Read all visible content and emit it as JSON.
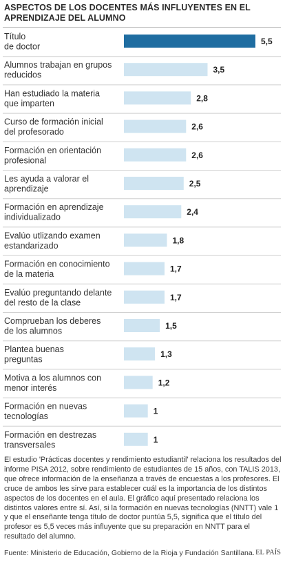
{
  "title": "ASPECTOS DE LOS DOCENTES MÁS INFLUYENTES EN EL APRENDIZAJE DEL ALUMNO",
  "colors": {
    "highlight": "#1f6da1",
    "bar": "#cfe4f1"
  },
  "chart_data": {
    "type": "bar",
    "orientation": "horizontal",
    "title": "ASPECTOS DE LOS DOCENTES MÁS INFLUYENTES EN EL APRENDIZAJE DEL ALUMNO",
    "categories": [
      [
        "Título",
        "de doctor"
      ],
      [
        "Alumnos trabajan en grupos",
        "reducidos"
      ],
      [
        "Han estudiado la materia",
        "que imparten"
      ],
      [
        "Curso de formación inicial",
        "del profesorado"
      ],
      [
        "Formación en orientación",
        "profesional"
      ],
      [
        "Les ayuda a valorar el",
        "aprendizaje"
      ],
      [
        "Formación en aprendizaje",
        "individualizado"
      ],
      [
        "Evalúo utlizando examen",
        "estandarizado"
      ],
      [
        "Formación en conocimiento",
        "de la materia"
      ],
      [
        "Evalúo preguntando delante",
        "del resto de la clase"
      ],
      [
        "Comprueban los deberes",
        "de los alumnos"
      ],
      [
        "Plantea buenas",
        "preguntas"
      ],
      [
        "Motiva a los alumnos con",
        "menor interés"
      ],
      [
        "Formación en nuevas",
        "tecnologías"
      ],
      [
        "Formación en destrezas",
        "transversales"
      ]
    ],
    "values": [
      5.5,
      3.5,
      2.8,
      2.6,
      2.6,
      2.5,
      2.4,
      1.8,
      1.7,
      1.7,
      1.5,
      1.3,
      1.2,
      1,
      1
    ],
    "value_labels": [
      "5,5",
      "3,5",
      "2,8",
      "2,6",
      "2,6",
      "2,5",
      "2,4",
      "1,8",
      "1,7",
      "1,7",
      "1,5",
      "1,3",
      "1,2",
      "1",
      "1"
    ],
    "highlight_index": 0,
    "xlim": [
      0,
      5.5
    ],
    "grid": false,
    "legend": "none"
  },
  "note": "El estudio 'Prácticas docentes y rendimiento estudiantil' relaciona los resultados del informe PISA 2012, sobre rendimiento de estudiantes de 15 años, con TALIS 2013, que ofrece información de la enseñanza a través de encuestas a los profesores. El cruce de ambos les sirve para establecer cuál es la importancia de los distintos aspectos de los docentes en el aula. El gráfico aquí presentado relaciona los distintos valores entre sí. Así, si la formación en nuevas tecnologías (NNTT) vale 1 y que el enseñante tenga título de doctor puntúa 5,5, significa que el título del profesor es 5,5 veces más influyente que su preparación en NNTT para el resultado del alumno.",
  "source": "Fuente: Ministerio de Educación, Gobierno de la Rioja y Fundación Santillana.",
  "brand": "EL PAÍS"
}
